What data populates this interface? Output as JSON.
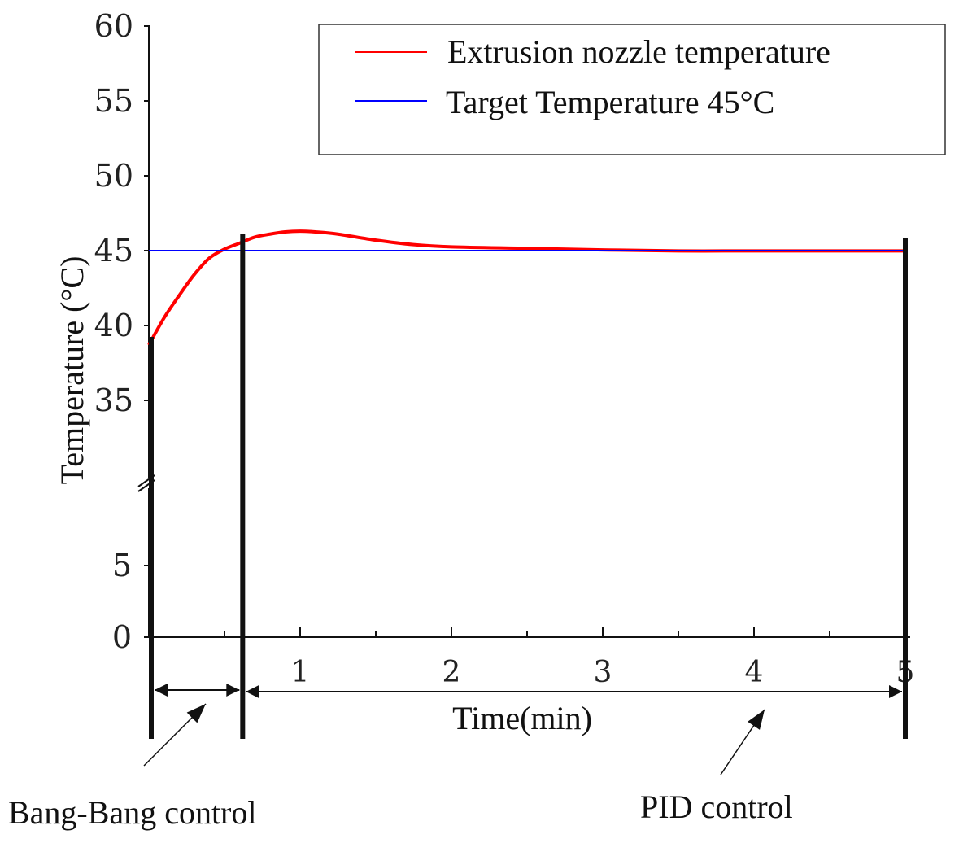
{
  "chart_data": {
    "type": "line",
    "title": "",
    "xlabel": "Time(min)",
    "ylabel": "Temperature (°C)",
    "xlim": [
      0,
      5
    ],
    "y_upper_range": [
      30,
      60
    ],
    "y_lower_range": [
      0,
      8
    ],
    "y_axis_break": "between 5 and 35",
    "xticks": [
      1,
      2,
      3,
      4,
      5
    ],
    "yticks_upper": [
      35,
      40,
      45,
      50,
      55,
      60
    ],
    "yticks_lower": [
      0,
      5
    ],
    "grid": false,
    "legend_position": "top-right",
    "series": [
      {
        "name": "Extrusion nozzle temperature",
        "color": "#ff0000",
        "x": [
          0,
          0.1,
          0.2,
          0.3,
          0.4,
          0.5,
          0.6,
          0.7,
          0.8,
          0.9,
          1.0,
          1.1,
          1.25,
          1.5,
          1.75,
          2.0,
          2.5,
          3.0,
          3.5,
          4.0,
          4.5,
          5.0
        ],
        "y": [
          38.7,
          40.5,
          42.0,
          43.4,
          44.5,
          45.1,
          45.5,
          45.9,
          46.1,
          46.25,
          46.3,
          46.25,
          46.1,
          45.7,
          45.4,
          45.25,
          45.15,
          45.05,
          44.98,
          44.98,
          44.98,
          44.98
        ]
      },
      {
        "name": "Target Temperature 45°C",
        "color": "#0000ff",
        "x": [
          0,
          5
        ],
        "y": [
          45,
          45
        ]
      }
    ],
    "annotations": [
      {
        "label": "Bang-Bang control",
        "from_x": 0,
        "to_x": 0.62
      },
      {
        "label": "PID control",
        "from_x": 0.62,
        "to_x": 5
      }
    ],
    "phase_lines_x": [
      0,
      0.62,
      5
    ]
  }
}
